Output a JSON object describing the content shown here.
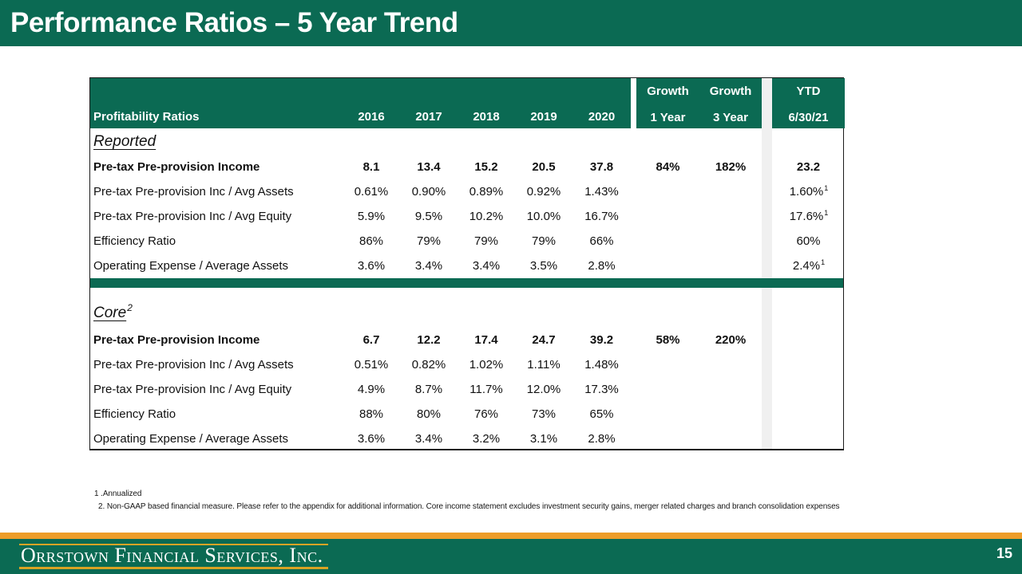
{
  "slide": {
    "title": "Performance Ratios – 5 Year Trend",
    "page_number": "15"
  },
  "colors": {
    "green": "#0b6a53",
    "orange": "#ee9d28",
    "gold": "#d9a424",
    "gray_strip": "#f0f0f0"
  },
  "table": {
    "header": {
      "label": "Profitability Ratios",
      "years": [
        "2016",
        "2017",
        "2018",
        "2019",
        "2020"
      ],
      "growth1": {
        "top": "Growth",
        "bottom": "1 Year"
      },
      "growth3": {
        "top": "Growth",
        "bottom": "3 Year"
      },
      "ytd": {
        "top": "YTD",
        "bottom": "6/30/21"
      }
    },
    "sections": [
      {
        "name": "Reported",
        "sup": "",
        "rows": [
          {
            "label": "Pre-tax Pre-provision Income",
            "bold": true,
            "values": [
              "8.1",
              "13.4",
              "15.2",
              "20.5",
              "37.8"
            ],
            "growth1": "84%",
            "growth3": "182%",
            "ytd": "23.2",
            "ytd_sup": ""
          },
          {
            "label": "Pre-tax Pre-provision Inc / Avg Assets",
            "bold": false,
            "values": [
              "0.61%",
              "0.90%",
              "0.89%",
              "0.92%",
              "1.43%"
            ],
            "growth1": "",
            "growth3": "",
            "ytd": "1.60%",
            "ytd_sup": "1"
          },
          {
            "label": "Pre-tax Pre-provision Inc / Avg Equity",
            "bold": false,
            "values": [
              "5.9%",
              "9.5%",
              "10.2%",
              "10.0%",
              "16.7%"
            ],
            "growth1": "",
            "growth3": "",
            "ytd": "17.6%",
            "ytd_sup": "1"
          },
          {
            "label": "Efficiency Ratio",
            "bold": false,
            "values": [
              "86%",
              "79%",
              "79%",
              "79%",
              "66%"
            ],
            "growth1": "",
            "growth3": "",
            "ytd": "60%",
            "ytd_sup": ""
          },
          {
            "label": "Operating Expense / Average Assets",
            "bold": false,
            "values": [
              "3.6%",
              "3.4%",
              "3.4%",
              "3.5%",
              "2.8%"
            ],
            "growth1": "",
            "growth3": "",
            "ytd": "2.4%",
            "ytd_sup": "1"
          }
        ]
      },
      {
        "name": "Core",
        "sup": "2",
        "rows": [
          {
            "label": "Pre-tax Pre-provision Income",
            "bold": true,
            "values": [
              "6.7",
              "12.2",
              "17.4",
              "24.7",
              "39.2"
            ],
            "growth1": "58%",
            "growth3": "220%",
            "ytd": "",
            "ytd_sup": ""
          },
          {
            "label": "Pre-tax Pre-provision Inc / Avg Assets",
            "bold": false,
            "values": [
              "0.51%",
              "0.82%",
              "1.02%",
              "1.11%",
              "1.48%"
            ],
            "growth1": "",
            "growth3": "",
            "ytd": "",
            "ytd_sup": ""
          },
          {
            "label": "Pre-tax Pre-provision Inc / Avg Equity",
            "bold": false,
            "values": [
              "4.9%",
              "8.7%",
              "11.7%",
              "12.0%",
              "17.3%"
            ],
            "growth1": "",
            "growth3": "",
            "ytd": "",
            "ytd_sup": ""
          },
          {
            "label": "Efficiency Ratio",
            "bold": false,
            "values": [
              "88%",
              "80%",
              "76%",
              "73%",
              "65%"
            ],
            "growth1": "",
            "growth3": "",
            "ytd": "",
            "ytd_sup": ""
          },
          {
            "label": "Operating Expense / Average Assets",
            "bold": false,
            "values": [
              "3.6%",
              "3.4%",
              "3.2%",
              "3.1%",
              "2.8%"
            ],
            "growth1": "",
            "growth3": "",
            "ytd": "",
            "ytd_sup": ""
          }
        ]
      }
    ]
  },
  "footnotes": [
    "1 .Annualized",
    "2. Non-GAAP based financial measure. Please refer to the appendix for additional information. Core income statement excludes investment security gains, merger related charges and branch consolidation expenses"
  ],
  "footer": {
    "logo_text": "Orrstown Financial Services, Inc."
  }
}
